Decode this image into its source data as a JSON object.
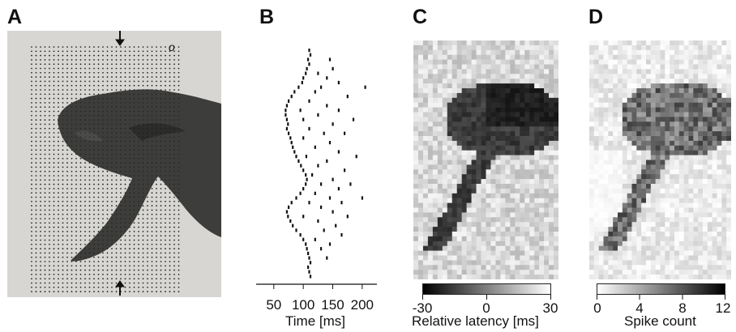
{
  "figure": {
    "panels": [
      {
        "letter": "A"
      },
      {
        "letter": "B"
      },
      {
        "letter": "C"
      },
      {
        "letter": "D"
      }
    ]
  },
  "panel_a": {
    "description_marks": {
      "marker_symbol": "o"
    },
    "colors": {
      "background": "#d8d6d2",
      "fish": "#3d3d3b",
      "dots": "#222222"
    }
  },
  "chart_data": [
    {
      "type": "scatter",
      "panel": "B",
      "xlabel": "Time [ms]",
      "ylabel": "",
      "xlim": [
        20,
        225
      ],
      "xticks": [
        50,
        100,
        150,
        200
      ],
      "note": "raster: each row is one stimulus position (top to bottom), tick marks are spike times",
      "rows": [
        [
          110
        ],
        [
          112
        ],
        [
          108,
          145
        ],
        [
          110
        ],
        [
          106,
          150
        ],
        [
          104,
          125
        ],
        [
          100,
          140
        ],
        [
          98,
          160
        ],
        [
          92,
          130,
          205
        ],
        [
          85,
          120
        ],
        [
          80,
          175
        ],
        [
          75,
          110
        ],
        [
          72,
          140
        ],
        [
          70,
          95,
          160
        ],
        [
          70,
          125
        ],
        [
          72,
          100,
          185
        ],
        [
          74,
          150
        ],
        [
          72,
          110
        ],
        [
          75,
          135,
          170
        ],
        [
          78,
          100
        ],
        [
          80,
          145
        ],
        [
          82,
          120
        ],
        [
          85,
          160
        ],
        [
          88,
          105,
          190
        ],
        [
          92,
          140
        ],
        [
          96,
          125
        ],
        [
          100,
          170
        ],
        [
          104,
          115
        ],
        [
          106,
          150
        ],
        [
          104,
          130,
          180
        ],
        [
          100,
          160
        ],
        [
          95,
          120
        ],
        [
          88,
          145,
          200
        ],
        [
          80,
          110,
          165
        ],
        [
          75,
          130
        ],
        [
          72,
          150
        ],
        [
          74,
          100,
          175
        ],
        [
          78,
          125
        ],
        [
          82,
          155
        ],
        [
          88,
          135
        ],
        [
          95,
          165
        ],
        [
          100,
          120
        ],
        [
          104,
          145
        ],
        [
          106,
          130
        ],
        [
          108
        ],
        [
          110,
          140
        ],
        [
          112
        ],
        [
          108
        ],
        [
          110
        ],
        [
          112
        ]
      ]
    },
    {
      "type": "heatmap",
      "panel": "C",
      "colorbar": {
        "label": "Relative latency [ms]",
        "ticks": [
          -30,
          0,
          30
        ],
        "min": -30,
        "max": 30,
        "cmap": "black-to-white"
      }
    },
    {
      "type": "heatmap",
      "panel": "D",
      "colorbar": {
        "label": "Spike count",
        "ticks": [
          0,
          4,
          8,
          12
        ],
        "min": 0,
        "max": 12,
        "cmap": "white-to-black"
      }
    }
  ]
}
